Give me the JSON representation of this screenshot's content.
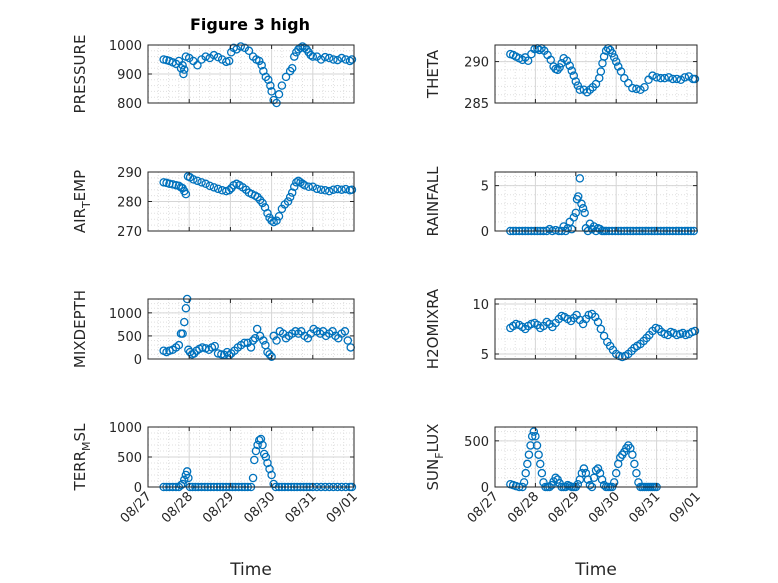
{
  "figure": {
    "title": "Figure 3 high"
  },
  "colors": {
    "marker": "#0072BD",
    "axis": "#262626",
    "grid": "#dfdfdf"
  },
  "chart_data": [
    {
      "type": "scatter",
      "ylabel": "PRESSURE",
      "xlabel": "",
      "title": "Figure 3 high",
      "xlim": [
        0,
        5
      ],
      "ylim": [
        800,
        1000
      ],
      "yticks": [
        800,
        900,
        1000
      ],
      "x_ticks": [
        "08/27",
        "08/28",
        "08/29",
        "08/30",
        "08/31",
        "09/01"
      ],
      "show_xticklabels": false,
      "grid": true,
      "x": [
        0.38,
        0.45,
        0.52,
        0.6,
        0.68,
        0.75,
        0.8,
        0.84,
        0.86,
        0.88,
        0.92,
        1.0,
        1.1,
        1.2,
        1.3,
        1.4,
        1.5,
        1.6,
        1.7,
        1.8,
        1.9,
        1.97,
        2.02,
        2.08,
        2.15,
        2.25,
        2.35,
        2.45,
        2.55,
        2.63,
        2.7,
        2.76,
        2.8,
        2.86,
        2.92,
        2.97,
        3.0,
        3.05,
        3.12,
        3.18,
        3.25,
        3.35,
        3.45,
        3.5,
        3.55,
        3.6,
        3.65,
        3.7,
        3.75,
        3.8,
        3.85,
        3.9,
        3.95,
        4.0,
        4.1,
        4.2,
        4.3,
        4.4,
        4.5,
        4.6,
        4.7,
        4.8,
        4.9,
        4.95
      ],
      "y": [
        950,
        948,
        945,
        940,
        935,
        945,
        920,
        930,
        900,
        915,
        960,
        955,
        945,
        930,
        950,
        960,
        955,
        965,
        958,
        950,
        942,
        945,
        975,
        990,
        985,
        995,
        990,
        980,
        960,
        950,
        945,
        930,
        910,
        890,
        880,
        860,
        840,
        810,
        800,
        830,
        860,
        890,
        910,
        920,
        960,
        975,
        985,
        990,
        995,
        990,
        985,
        975,
        965,
        960,
        960,
        950,
        958,
        955,
        950,
        948,
        955,
        950,
        945,
        950
      ]
    },
    {
      "type": "scatter",
      "ylabel": "THETA",
      "xlabel": "",
      "title": "",
      "xlim": [
        0,
        5
      ],
      "ylim": [
        285,
        292
      ],
      "yticks": [
        285,
        290
      ],
      "x_ticks": [
        "08/27",
        "08/28",
        "08/29",
        "08/30",
        "08/31",
        "09/01"
      ],
      "show_xticklabels": false,
      "grid": true,
      "x": [
        0.38,
        0.45,
        0.52,
        0.6,
        0.68,
        0.75,
        0.82,
        0.9,
        0.98,
        1.05,
        1.1,
        1.15,
        1.22,
        1.3,
        1.38,
        1.45,
        1.5,
        1.55,
        1.6,
        1.65,
        1.7,
        1.78,
        1.85,
        1.9,
        1.95,
        2.0,
        2.05,
        2.1,
        2.2,
        2.28,
        2.35,
        2.42,
        2.5,
        2.58,
        2.62,
        2.66,
        2.7,
        2.75,
        2.8,
        2.85,
        2.9,
        2.95,
        3.0,
        3.05,
        3.12,
        3.2,
        3.3,
        3.4,
        3.5,
        3.6,
        3.7,
        3.8,
        3.9,
        4.0,
        4.1,
        4.2,
        4.3,
        4.4,
        4.5,
        4.6,
        4.7,
        4.8,
        4.9,
        4.95
      ],
      "y": [
        290.9,
        290.8,
        290.6,
        290.4,
        290.2,
        290.5,
        290.1,
        290.9,
        291.5,
        291.6,
        291.4,
        291.6,
        291.3,
        290.8,
        290.2,
        289.4,
        289.1,
        289.0,
        289.3,
        289.8,
        290.4,
        290.1,
        289.5,
        288.9,
        288.3,
        287.6,
        287.1,
        286.6,
        286.6,
        286.3,
        286.6,
        286.9,
        287.3,
        288.0,
        288.8,
        289.8,
        290.6,
        291.3,
        291.6,
        291.4,
        291.0,
        290.5,
        290.0,
        289.4,
        288.8,
        288.0,
        287.4,
        286.8,
        286.7,
        286.6,
        286.9,
        287.8,
        288.3,
        288.1,
        288.0,
        288.0,
        288.1,
        287.9,
        287.9,
        287.8,
        288.1,
        288.2,
        287.9,
        287.9
      ]
    },
    {
      "type": "scatter",
      "ylabel": "AIR_TEMP",
      "xlabel": "",
      "title": "",
      "xlim": [
        0,
        5
      ],
      "ylim": [
        270,
        290
      ],
      "yticks": [
        270,
        280,
        290
      ],
      "x_ticks": [
        "08/27",
        "08/28",
        "08/29",
        "08/30",
        "08/31",
        "09/01"
      ],
      "show_xticklabels": false,
      "grid": true,
      "x": [
        0.38,
        0.45,
        0.52,
        0.6,
        0.68,
        0.75,
        0.8,
        0.84,
        0.88,
        0.92,
        0.97,
        1.02,
        1.1,
        1.2,
        1.3,
        1.4,
        1.5,
        1.6,
        1.7,
        1.8,
        1.9,
        1.97,
        2.02,
        2.08,
        2.15,
        2.22,
        2.3,
        2.38,
        2.45,
        2.52,
        2.6,
        2.66,
        2.72,
        2.78,
        2.84,
        2.9,
        2.95,
        3.0,
        3.05,
        3.12,
        3.18,
        3.25,
        3.32,
        3.4,
        3.45,
        3.5,
        3.55,
        3.6,
        3.65,
        3.7,
        3.75,
        3.8,
        3.9,
        4.0,
        4.1,
        4.2,
        4.3,
        4.4,
        4.5,
        4.6,
        4.7,
        4.8,
        4.9,
        4.95
      ],
      "y": [
        286.5,
        286.3,
        286,
        285.8,
        285.5,
        285.3,
        284.8,
        284.5,
        283.5,
        282.5,
        288.5,
        288.2,
        287.5,
        287,
        286.5,
        286,
        285.3,
        284.8,
        284.3,
        283.8,
        283.5,
        283.8,
        284.5,
        285.5,
        286,
        285.5,
        284.8,
        284,
        283,
        282.5,
        282,
        281.5,
        280.5,
        279.5,
        278,
        276,
        274.5,
        273.5,
        273,
        273.5,
        275,
        277.5,
        279,
        280,
        281.5,
        283,
        285,
        286.5,
        287,
        286.5,
        286,
        285.5,
        285,
        285,
        284.3,
        284,
        283.8,
        283.5,
        284,
        284.2,
        284,
        284.2,
        283.8,
        284
      ]
    },
    {
      "type": "scatter",
      "ylabel": "RAINFALL",
      "xlabel": "",
      "title": "",
      "xlim": [
        0,
        5
      ],
      "ylim": [
        0,
        6.5
      ],
      "yticks": [
        0,
        5
      ],
      "x_ticks": [
        "08/27",
        "08/28",
        "08/29",
        "08/30",
        "08/31",
        "09/01"
      ],
      "show_xticklabels": false,
      "grid": true,
      "x": [
        0.38,
        0.45,
        0.52,
        0.6,
        0.68,
        0.75,
        0.82,
        0.9,
        0.98,
        1.05,
        1.12,
        1.2,
        1.28,
        1.35,
        1.42,
        1.5,
        1.58,
        1.65,
        1.7,
        1.75,
        1.8,
        1.85,
        1.9,
        1.95,
        2.0,
        2.03,
        2.06,
        2.1,
        2.14,
        2.18,
        2.22,
        2.25,
        2.3,
        2.35,
        2.4,
        2.45,
        2.5,
        2.55,
        2.6,
        2.65,
        2.7,
        2.75,
        2.82,
        2.9,
        2.98,
        3.05,
        3.12,
        3.2,
        3.28,
        3.35,
        3.42,
        3.5,
        3.58,
        3.65,
        3.72,
        3.8,
        3.88,
        3.95,
        4.02,
        4.1,
        4.18,
        4.25,
        4.32,
        4.4,
        4.48,
        4.55,
        4.62,
        4.7,
        4.78,
        4.85,
        4.92
      ],
      "y": [
        0,
        0,
        0,
        0,
        0,
        0,
        0,
        0,
        0,
        0,
        0,
        0,
        0,
        0.2,
        0,
        0.1,
        0,
        0,
        0.5,
        0,
        0.3,
        1.0,
        0.2,
        1.5,
        2.0,
        3.5,
        3.8,
        5.8,
        3.0,
        2.5,
        2.0,
        0.3,
        0,
        0.8,
        0.2,
        0.5,
        0,
        0.3,
        0.2,
        0,
        0,
        0,
        0,
        0,
        0,
        0,
        0,
        0,
        0,
        0,
        0,
        0,
        0,
        0,
        0,
        0,
        0,
        0,
        0,
        0,
        0,
        0,
        0,
        0,
        0,
        0,
        0,
        0,
        0,
        0,
        0
      ]
    },
    {
      "type": "scatter",
      "ylabel": "MIXDEPTH",
      "xlabel": "",
      "title": "",
      "xlim": [
        0,
        5
      ],
      "ylim": [
        0,
        1300
      ],
      "yticks": [
        0,
        500,
        1000
      ],
      "x_ticks": [
        "08/27",
        "08/28",
        "08/29",
        "08/30",
        "08/31",
        "09/01"
      ],
      "show_xticklabels": false,
      "grid": true,
      "x": [
        0.38,
        0.45,
        0.52,
        0.6,
        0.68,
        0.75,
        0.8,
        0.84,
        0.88,
        0.92,
        0.95,
        0.98,
        1.02,
        1.07,
        1.12,
        1.18,
        1.25,
        1.32,
        1.4,
        1.48,
        1.55,
        1.62,
        1.7,
        1.78,
        1.85,
        1.92,
        1.97,
        2.02,
        2.1,
        2.18,
        2.26,
        2.34,
        2.42,
        2.5,
        2.55,
        2.6,
        2.65,
        2.72,
        2.8,
        2.85,
        2.9,
        2.95,
        3.0,
        3.05,
        3.12,
        3.2,
        3.28,
        3.35,
        3.42,
        3.5,
        3.58,
        3.65,
        3.72,
        3.8,
        3.88,
        3.95,
        4.02,
        4.1,
        4.18,
        4.25,
        4.32,
        4.4,
        4.48,
        4.55,
        4.62,
        4.7,
        4.78,
        4.85,
        4.92
      ],
      "y": [
        180,
        150,
        180,
        200,
        250,
        300,
        550,
        550,
        800,
        1100,
        1300,
        200,
        150,
        100,
        120,
        180,
        220,
        250,
        230,
        200,
        250,
        280,
        120,
        100,
        90,
        150,
        80,
        120,
        180,
        250,
        300,
        350,
        350,
        250,
        400,
        450,
        650,
        500,
        400,
        300,
        150,
        100,
        50,
        500,
        400,
        600,
        550,
        450,
        500,
        550,
        600,
        550,
        600,
        500,
        450,
        550,
        650,
        600,
        550,
        600,
        500,
        550,
        600,
        500,
        450,
        550,
        600,
        400,
        250
      ]
    },
    {
      "type": "scatter",
      "ylabel": "H2OMIXRA",
      "xlabel": "",
      "title": "",
      "xlim": [
        0,
        5
      ],
      "ylim": [
        4.5,
        10.5
      ],
      "yticks": [
        5,
        10
      ],
      "x_ticks": [
        "08/27",
        "08/28",
        "08/29",
        "08/30",
        "08/31",
        "09/01"
      ],
      "show_xticklabels": false,
      "grid": true,
      "x": [
        0.38,
        0.45,
        0.52,
        0.6,
        0.68,
        0.75,
        0.82,
        0.9,
        0.98,
        1.05,
        1.12,
        1.2,
        1.28,
        1.35,
        1.42,
        1.5,
        1.58,
        1.65,
        1.72,
        1.8,
        1.88,
        1.95,
        2.02,
        2.1,
        2.18,
        2.25,
        2.32,
        2.4,
        2.48,
        2.55,
        2.62,
        2.7,
        2.78,
        2.85,
        2.92,
        3.0,
        3.08,
        3.15,
        3.22,
        3.3,
        3.38,
        3.45,
        3.52,
        3.6,
        3.68,
        3.75,
        3.82,
        3.9,
        3.98,
        4.05,
        4.12,
        4.2,
        4.28,
        4.35,
        4.42,
        4.5,
        4.58,
        4.65,
        4.72,
        4.8,
        4.88,
        4.95
      ],
      "y": [
        7.6,
        7.8,
        8.0,
        7.9,
        7.7,
        7.5,
        7.8,
        8.0,
        8.1,
        7.9,
        7.6,
        7.8,
        8.2,
        8.0,
        7.7,
        8.1,
        8.5,
        8.8,
        8.7,
        8.5,
        8.3,
        8.6,
        8.9,
        8.4,
        8.0,
        8.5,
        8.9,
        9.0,
        8.7,
        8.2,
        7.5,
        6.8,
        6.2,
        5.8,
        5.4,
        5.0,
        4.8,
        4.7,
        4.8,
        5.0,
        5.3,
        5.6,
        5.8,
        6.0,
        6.3,
        6.6,
        6.9,
        7.3,
        7.6,
        7.5,
        7.2,
        7.0,
        6.9,
        7.2,
        7.1,
        6.9,
        7.0,
        7.1,
        6.9,
        7.0,
        7.2,
        7.3
      ]
    },
    {
      "type": "scatter",
      "ylabel": "TERR_MSL",
      "xlabel": "Time",
      "title": "",
      "xlim": [
        0,
        5
      ],
      "ylim": [
        0,
        1000
      ],
      "yticks": [
        0,
        500,
        1000
      ],
      "x_ticks": [
        "08/27",
        "08/28",
        "08/29",
        "08/30",
        "08/31",
        "09/01"
      ],
      "show_xticklabels": true,
      "grid": true,
      "x": [
        0.38,
        0.45,
        0.52,
        0.6,
        0.68,
        0.75,
        0.8,
        0.84,
        0.88,
        0.92,
        0.95,
        0.98,
        1.02,
        1.08,
        1.15,
        1.22,
        1.3,
        1.38,
        1.45,
        1.52,
        1.6,
        1.68,
        1.75,
        1.82,
        1.9,
        1.98,
        2.05,
        2.12,
        2.2,
        2.28,
        2.35,
        2.42,
        2.5,
        2.55,
        2.58,
        2.62,
        2.66,
        2.7,
        2.74,
        2.78,
        2.82,
        2.86,
        2.9,
        2.95,
        3.0,
        3.05,
        3.1,
        3.18,
        3.25,
        3.32,
        3.4,
        3.48,
        3.55,
        3.62,
        3.7,
        3.78,
        3.85,
        3.92,
        4.0,
        4.1,
        4.2,
        4.3,
        4.4,
        4.5,
        4.6,
        4.7,
        4.8,
        4.9,
        4.95
      ],
      "y": [
        0,
        0,
        0,
        0,
        0,
        0,
        30,
        50,
        120,
        200,
        260,
        150,
        0,
        0,
        0,
        0,
        0,
        0,
        0,
        0,
        0,
        0,
        0,
        0,
        0,
        0,
        0,
        0,
        0,
        0,
        0,
        0,
        0,
        150,
        450,
        600,
        700,
        780,
        800,
        700,
        550,
        500,
        400,
        300,
        200,
        50,
        0,
        0,
        0,
        0,
        0,
        0,
        0,
        0,
        0,
        0,
        0,
        0,
        0,
        0,
        0,
        0,
        0,
        0,
        0,
        0,
        0,
        0,
        0
      ]
    },
    {
      "type": "scatter",
      "ylabel": "SUN_FLUX",
      "xlabel": "Time",
      "title": "",
      "xlim": [
        0,
        5
      ],
      "ylim": [
        0,
        650
      ],
      "yticks": [
        0,
        500
      ],
      "x_ticks": [
        "08/27",
        "08/28",
        "08/29",
        "08/30",
        "08/31",
        "09/01"
      ],
      "show_xticklabels": true,
      "grid": true,
      "x": [
        0.38,
        0.45,
        0.52,
        0.6,
        0.68,
        0.72,
        0.76,
        0.8,
        0.84,
        0.88,
        0.92,
        0.96,
        1.0,
        1.04,
        1.08,
        1.12,
        1.16,
        1.2,
        1.25,
        1.3,
        1.35,
        1.4,
        1.45,
        1.5,
        1.55,
        1.6,
        1.65,
        1.7,
        1.75,
        1.8,
        1.85,
        1.9,
        1.95,
        2.0,
        2.05,
        2.1,
        2.15,
        2.2,
        2.25,
        2.3,
        2.35,
        2.4,
        2.45,
        2.5,
        2.55,
        2.6,
        2.65,
        2.7,
        2.75,
        2.8,
        2.85,
        2.9,
        2.95,
        3.0,
        3.05,
        3.1,
        3.15,
        3.2,
        3.25,
        3.3,
        3.35,
        3.4,
        3.45,
        3.5,
        3.55,
        3.6,
        3.65,
        3.7,
        3.75,
        3.8,
        3.85,
        3.9,
        3.95,
        4.0
      ],
      "y": [
        30,
        20,
        10,
        0,
        0,
        50,
        150,
        250,
        350,
        450,
        550,
        600,
        550,
        450,
        350,
        250,
        150,
        50,
        0,
        0,
        0,
        20,
        60,
        100,
        80,
        40,
        0,
        0,
        0,
        20,
        10,
        0,
        0,
        0,
        30,
        80,
        150,
        200,
        150,
        80,
        20,
        0,
        100,
        180,
        200,
        150,
        80,
        20,
        0,
        0,
        0,
        0,
        50,
        150,
        250,
        320,
        350,
        380,
        420,
        450,
        420,
        350,
        250,
        150,
        50,
        0,
        0,
        0,
        0,
        0,
        0,
        0,
        0,
        0
      ]
    }
  ]
}
